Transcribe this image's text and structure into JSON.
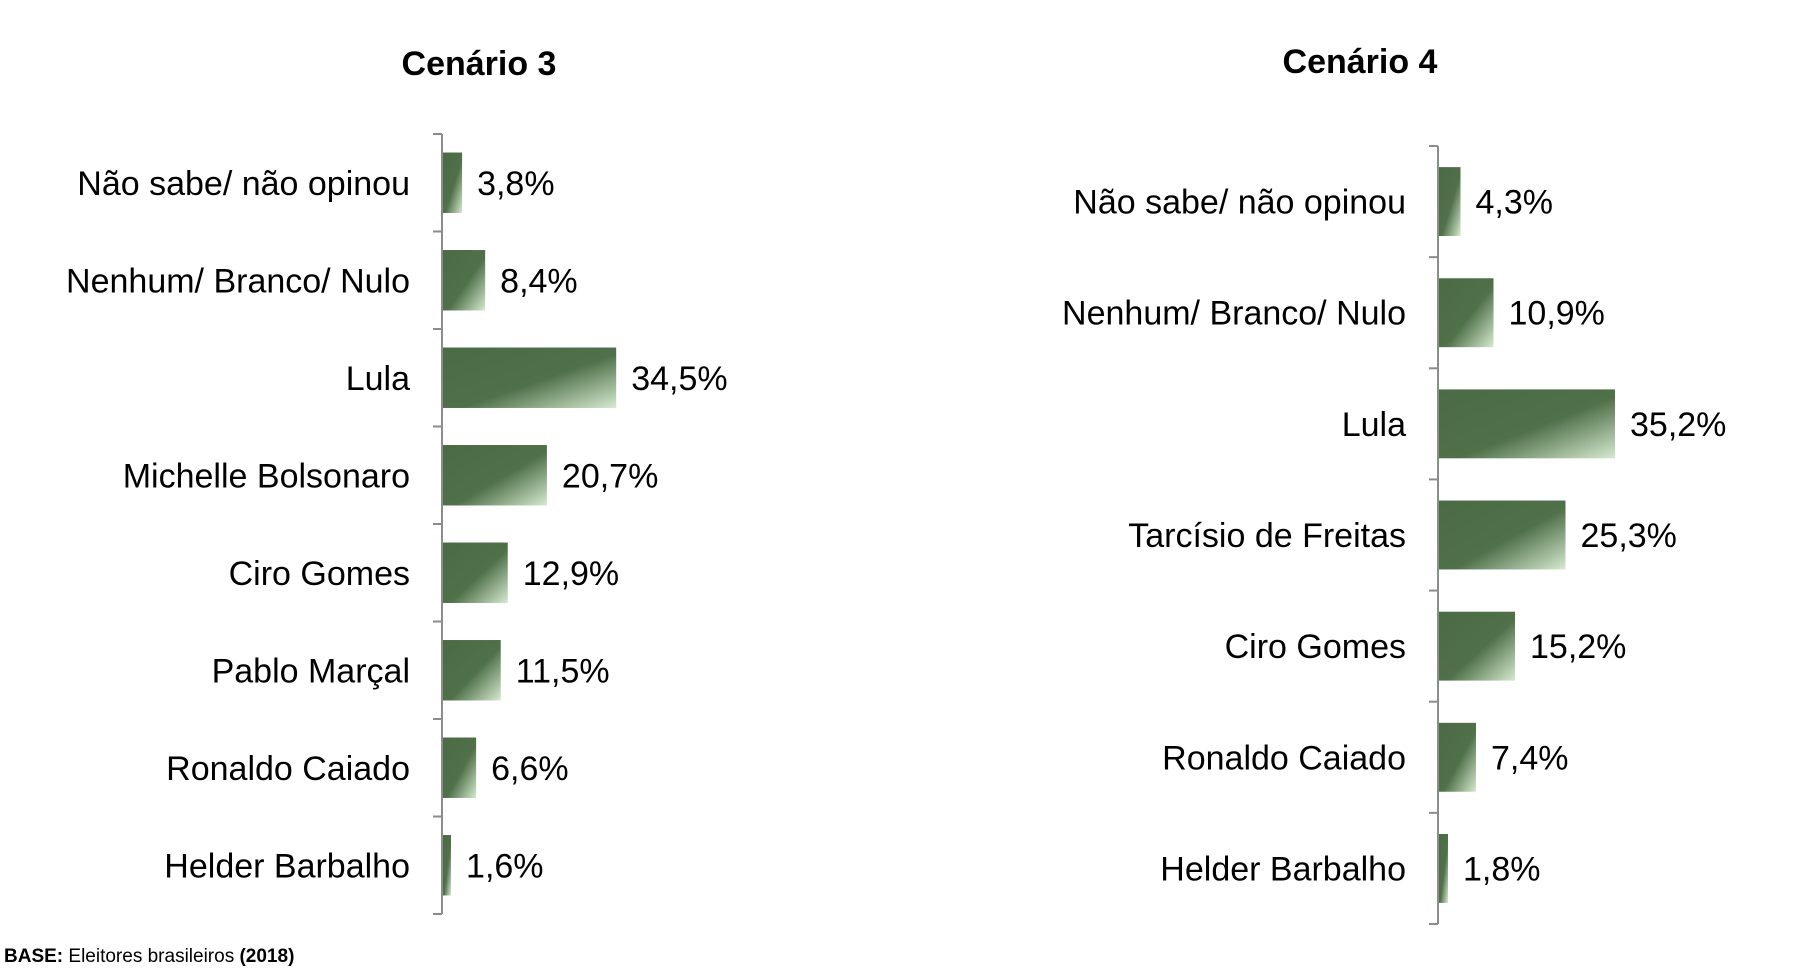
{
  "chart_data": [
    {
      "type": "bar",
      "orientation": "horizontal",
      "title": "Cenário 3",
      "categories": [
        "Não sabe/ não opinou",
        "Nenhum/ Branco/ Nulo",
        "Lula",
        "Michelle Bolsonaro",
        "Ciro Gomes",
        "Pablo Marçal",
        "Ronaldo Caiado",
        "Helder Barbalho"
      ],
      "values": [
        3.8,
        8.4,
        34.5,
        20.7,
        12.9,
        11.5,
        6.6,
        1.6
      ],
      "labels": [
        "3,8%",
        "8,4%",
        "34,5%",
        "20,7%",
        "12,9%",
        "11,5%",
        "6,6%",
        "1,6%"
      ],
      "xlim": [
        0,
        40
      ],
      "grid": false,
      "colors": {
        "bar_dark": "#4a6b44",
        "bar_light": "#d6ead0",
        "axis": "#8c8c8c"
      }
    },
    {
      "type": "bar",
      "orientation": "horizontal",
      "title": "Cenário 4",
      "categories": [
        "Não sabe/ não opinou",
        "Nenhum/ Branco/ Nulo",
        "Lula",
        "Tarcísio de Freitas",
        "Ciro Gomes",
        "Ronaldo Caiado",
        "Helder Barbalho"
      ],
      "values": [
        4.3,
        10.9,
        35.2,
        25.3,
        15.2,
        7.4,
        1.8
      ],
      "labels": [
        "4,3%",
        "10,9%",
        "35,2%",
        "25,3%",
        "15,2%",
        "7,4%",
        "1,8%"
      ],
      "xlim": [
        0,
        40
      ],
      "grid": false,
      "colors": {
        "bar_dark": "#4a6b44",
        "bar_light": "#d6ead0",
        "axis": "#8c8c8c"
      }
    }
  ],
  "footer": {
    "base_label": "BASE:",
    "base_text": " Eleitores brasileiros ",
    "year": "(2018)"
  }
}
